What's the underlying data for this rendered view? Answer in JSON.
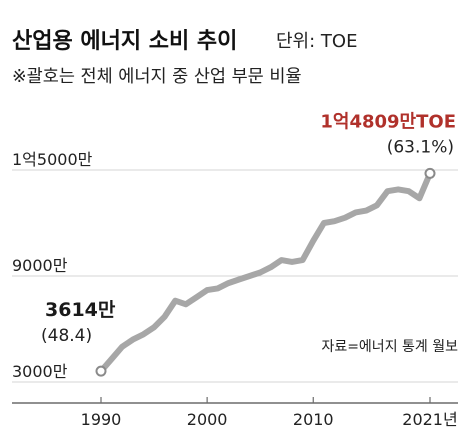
{
  "header": {
    "title": "산업용 에너지 소비 추이",
    "unit": "단위: TOE",
    "subtitle": "※괄호는 전체 에너지 중 산업 부문 비율"
  },
  "source": "자료=에너지 통계 월보",
  "colors": {
    "line": "#a7a7a7",
    "accent_red": "#b0312b",
    "grid": "#d4d4d4",
    "text": "#1a1a1a"
  },
  "chart_data": {
    "type": "line",
    "title": "산업용 에너지 소비 추이",
    "unit": "TOE",
    "xlim": [
      1990,
      2021
    ],
    "ylim": [
      3000,
      15000
    ],
    "x_ticks": [
      {
        "value": 1990,
        "label": "1990"
      },
      {
        "value": 2000,
        "label": "2000"
      },
      {
        "value": 2010,
        "label": "2010"
      },
      {
        "value": 2021,
        "label": "2021년"
      }
    ],
    "y_ticks": [
      {
        "value": 3000,
        "label": "3000만"
      },
      {
        "value": 9000,
        "label": "9000만"
      },
      {
        "value": 15000,
        "label": "1억5000만"
      }
    ],
    "grid": true,
    "series": [
      {
        "points": [
          {
            "x": 1990,
            "y": 3614
          },
          {
            "x": 1991,
            "y": 4300
          },
          {
            "x": 1992,
            "y": 5000
          },
          {
            "x": 1993,
            "y": 5400
          },
          {
            "x": 1994,
            "y": 5700
          },
          {
            "x": 1995,
            "y": 6100
          },
          {
            "x": 1996,
            "y": 6700
          },
          {
            "x": 1997,
            "y": 7600
          },
          {
            "x": 1998,
            "y": 7400
          },
          {
            "x": 1999,
            "y": 7800
          },
          {
            "x": 2000,
            "y": 8200
          },
          {
            "x": 2001,
            "y": 8300
          },
          {
            "x": 2002,
            "y": 8600
          },
          {
            "x": 2003,
            "y": 8800
          },
          {
            "x": 2004,
            "y": 9000
          },
          {
            "x": 2005,
            "y": 9200
          },
          {
            "x": 2006,
            "y": 9500
          },
          {
            "x": 2007,
            "y": 9900
          },
          {
            "x": 2008,
            "y": 9800
          },
          {
            "x": 2009,
            "y": 9900
          },
          {
            "x": 2010,
            "y": 11000
          },
          {
            "x": 2011,
            "y": 12000
          },
          {
            "x": 2012,
            "y": 12100
          },
          {
            "x": 2013,
            "y": 12300
          },
          {
            "x": 2014,
            "y": 12600
          },
          {
            "x": 2015,
            "y": 12700
          },
          {
            "x": 2016,
            "y": 13000
          },
          {
            "x": 2017,
            "y": 13800
          },
          {
            "x": 2018,
            "y": 13900
          },
          {
            "x": 2019,
            "y": 13800
          },
          {
            "x": 2020,
            "y": 13400
          },
          {
            "x": 2021,
            "y": 14809
          }
        ]
      }
    ],
    "annotations": {
      "start": {
        "x": 1990,
        "y": 3614,
        "label": "3614만",
        "sublabel": "(48.4)"
      },
      "end": {
        "x": 2021,
        "y": 14809,
        "label": "1억4809만TOE",
        "sublabel": "(63.1%)"
      }
    }
  }
}
